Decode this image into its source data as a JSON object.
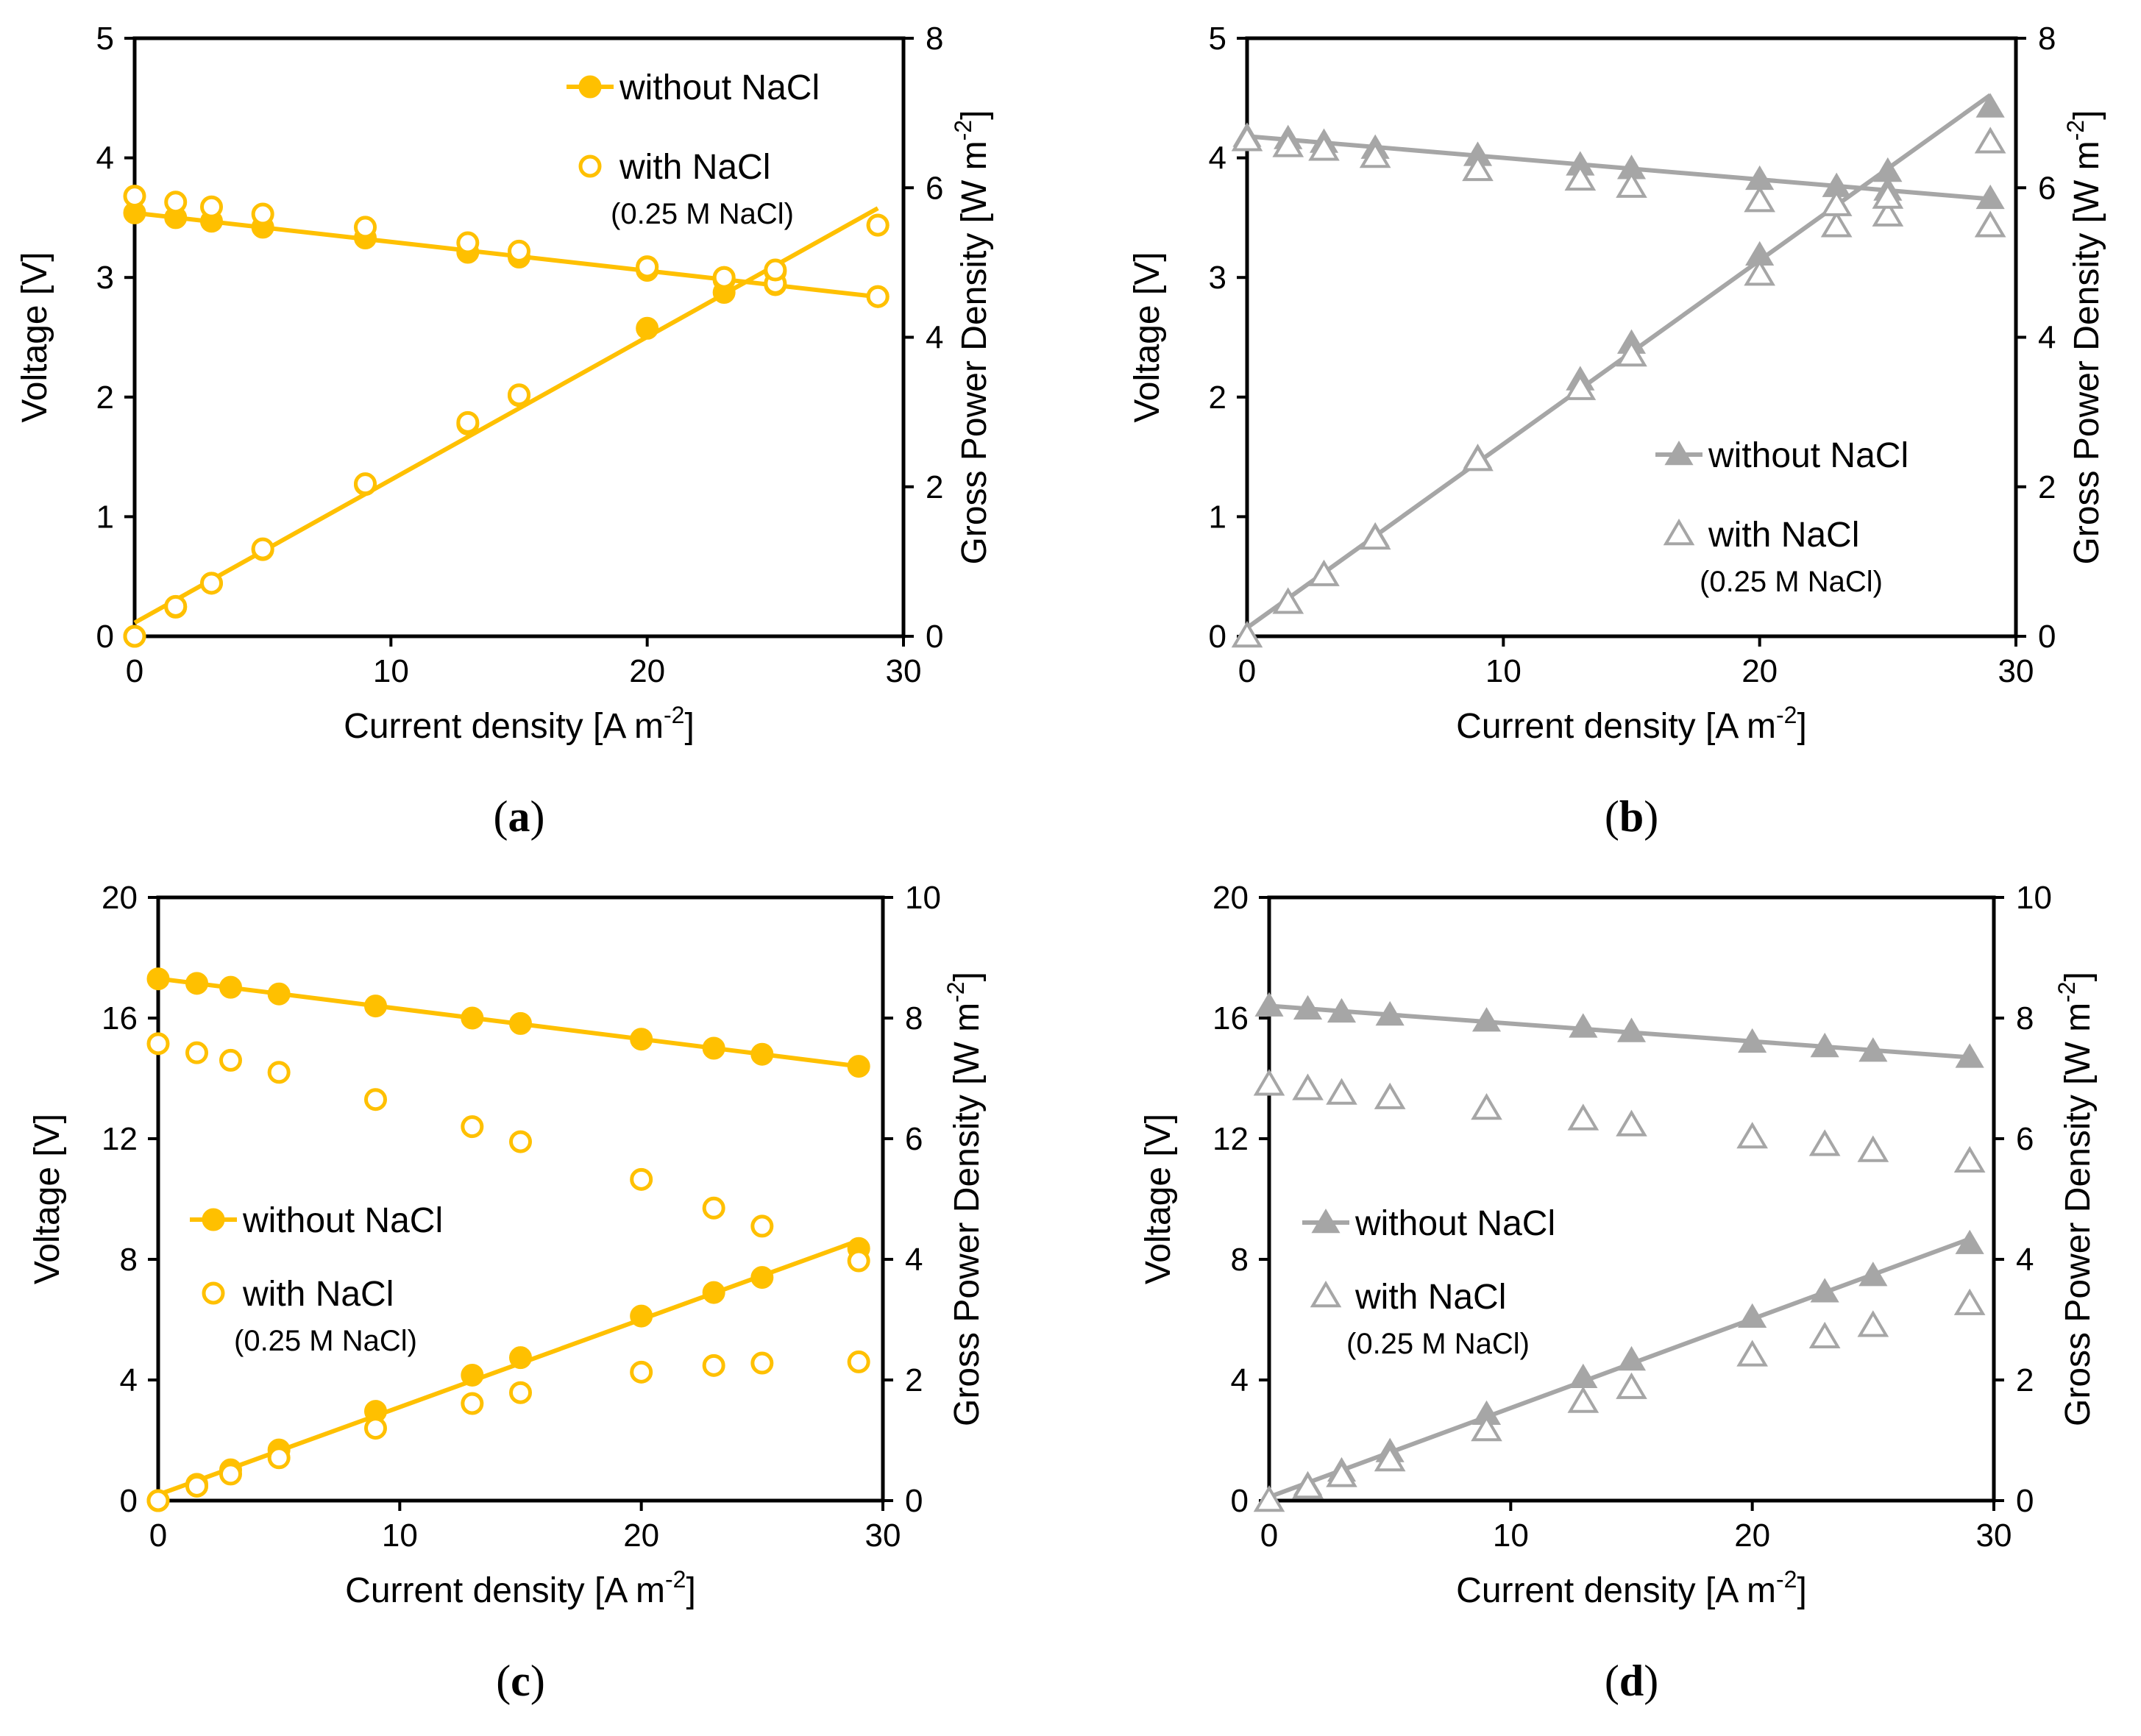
{
  "chart_data": [
    {
      "type": "line",
      "panel_label": "a",
      "xlabel": "Current density [A m",
      "xlabel_sup": "-2",
      "xlabel_end": "]",
      "ylabel": "Voltage [V]",
      "y2label": "Gross Power Density [W m",
      "y2label_sup": "-2",
      "y2label_end": "]",
      "xlim": [
        0,
        30
      ],
      "ylim": [
        0,
        5
      ],
      "y2lim": [
        0,
        8
      ],
      "xticks": [
        "0",
        "10",
        "20",
        "30"
      ],
      "yticks": [
        "0",
        "1",
        "2",
        "3",
        "4",
        "5"
      ],
      "y2ticks": [
        "0",
        "2",
        "4",
        "6",
        "8"
      ],
      "color": "#ffc000",
      "marker": "circle",
      "legend": {
        "position": "top-right",
        "entries": [
          "without NaCl",
          "with NaCl"
        ],
        "note": "(0.25 M NaCl)"
      },
      "x": [
        0,
        1.6,
        3,
        5,
        9,
        13,
        15,
        20,
        23,
        25,
        29
      ],
      "series": [
        {
          "name": "without NaCl",
          "quantity": "voltage",
          "axis": "left",
          "filled": true,
          "line": true,
          "values": [
            3.54,
            3.5,
            3.47,
            3.42,
            3.33,
            3.21,
            3.17,
            3.06,
            2.98,
            2.94,
            2.84
          ]
        },
        {
          "name": "without NaCl",
          "quantity": "power density",
          "axis": "right",
          "filled": true,
          "line": true,
          "values": [
            0,
            0.39,
            0.71,
            1.16,
            2.03,
            2.84,
            3.22,
            4.12,
            4.6,
            4.88,
            5.5
          ]
        },
        {
          "name": "with NaCl",
          "quantity": "voltage",
          "axis": "left",
          "filled": false,
          "line": false,
          "values": [
            3.68,
            3.63,
            3.59,
            3.53,
            3.42,
            3.29,
            3.22,
            3.09,
            3.0,
            2.95,
            2.84
          ]
        },
        {
          "name": "with NaCl",
          "quantity": "power density",
          "axis": "right",
          "filled": false,
          "line": false,
          "values": [
            0,
            0.4,
            0.71,
            1.17,
            2.04,
            2.86,
            3.23,
            4.94,
            4.8,
            4.9,
            5.5
          ]
        }
      ]
    },
    {
      "type": "line",
      "panel_label": "b",
      "xlabel": "Current density [A m",
      "xlabel_sup": "-2",
      "xlabel_end": "]",
      "ylabel": "Voltage [V]",
      "y2label": "Gross Power Density [W m",
      "y2label_sup": "-2",
      "y2label_end": "]",
      "xlim": [
        0,
        30
      ],
      "ylim": [
        0,
        5
      ],
      "y2lim": [
        0,
        8
      ],
      "xticks": [
        "0",
        "10",
        "20",
        "30"
      ],
      "yticks": [
        "0",
        "1",
        "2",
        "3",
        "4",
        "5"
      ],
      "y2ticks": [
        "0",
        "2",
        "4",
        "6",
        "8"
      ],
      "color": "#a6a6a6",
      "marker": "triangle",
      "legend": {
        "position": "bottom-right",
        "entries": [
          "without NaCl",
          "with NaCl"
        ],
        "note": "(0.25 M NaCl)"
      },
      "x": [
        0,
        1.6,
        3,
        5,
        9,
        13,
        15,
        20,
        23,
        25,
        29
      ],
      "series": [
        {
          "name": "without NaCl",
          "quantity": "voltage",
          "axis": "left",
          "filled": true,
          "line": true,
          "values": [
            4.18,
            4.16,
            4.13,
            4.08,
            4.02,
            3.94,
            3.91,
            3.82,
            3.76,
            3.73,
            3.66
          ]
        },
        {
          "name": "without NaCl",
          "quantity": "power density",
          "axis": "right",
          "filled": true,
          "line": true,
          "values": [
            0,
            0.45,
            0.83,
            1.34,
            2.39,
            3.43,
            3.92,
            5.1,
            5.78,
            6.22,
            7.08
          ]
        },
        {
          "name": "with NaCl",
          "quantity": "voltage",
          "axis": "left",
          "filled": false,
          "line": false,
          "values": [
            4.15,
            4.1,
            4.07,
            4.01,
            3.9,
            3.82,
            3.76,
            3.64,
            3.43,
            3.52,
            3.43
          ]
        },
        {
          "name": "with NaCl",
          "quantity": "power density",
          "axis": "right",
          "filled": false,
          "line": false,
          "values": [
            0,
            0.45,
            0.82,
            1.31,
            2.36,
            3.31,
            3.76,
            4.84,
            5.77,
            5.87,
            6.61
          ]
        }
      ]
    },
    {
      "type": "line",
      "panel_label": "c",
      "xlabel": "Current density [A m",
      "xlabel_sup": "-2",
      "xlabel_end": "]",
      "ylabel": "Voltage [V]",
      "y2label": "Gross Power Density [W m",
      "y2label_sup": "-2",
      "y2label_end": "]",
      "xlim": [
        0,
        30
      ],
      "ylim": [
        0,
        20
      ],
      "y2lim": [
        0,
        10
      ],
      "xticks": [
        "0",
        "10",
        "20",
        "30"
      ],
      "yticks": [
        "0",
        "4",
        "8",
        "12",
        "16",
        "20"
      ],
      "y2ticks": [
        "0",
        "2",
        "4",
        "6",
        "8",
        "10"
      ],
      "color": "#ffc000",
      "marker": "circle",
      "legend": {
        "position": "center-left",
        "entries": [
          "without NaCl",
          "with NaCl"
        ],
        "note": "(0.25 M NaCl)"
      },
      "x": [
        0,
        1.6,
        3,
        5,
        9,
        13,
        15,
        20,
        23,
        25,
        29
      ],
      "series": [
        {
          "name": "without NaCl",
          "quantity": "voltage",
          "axis": "left",
          "filled": true,
          "line": true,
          "values": [
            17.3,
            17.15,
            17.02,
            16.8,
            16.4,
            16.0,
            15.82,
            15.3,
            15.0,
            14.8,
            14.4
          ]
        },
        {
          "name": "without NaCl",
          "quantity": "power density",
          "axis": "right",
          "filled": true,
          "line": true,
          "values": [
            0,
            0.27,
            0.51,
            0.84,
            1.48,
            2.08,
            2.37,
            3.06,
            3.45,
            3.7,
            4.18
          ]
        },
        {
          "name": "with NaCl",
          "quantity": "voltage",
          "axis": "left",
          "filled": false,
          "line": false,
          "values": [
            15.15,
            14.85,
            14.6,
            14.2,
            13.3,
            12.4,
            11.9,
            10.65,
            9.7,
            9.1,
            7.95
          ]
        },
        {
          "name": "with NaCl",
          "quantity": "power density",
          "axis": "right",
          "filled": false,
          "line": false,
          "values": [
            0,
            0.24,
            0.44,
            0.71,
            1.2,
            1.61,
            1.79,
            2.13,
            2.24,
            2.28,
            2.3
          ]
        }
      ]
    },
    {
      "type": "line",
      "panel_label": "d",
      "xlabel": "Current density [A m",
      "xlabel_sup": "-2",
      "xlabel_end": "]",
      "ylabel": "Voltage [V]",
      "y2label": "Gross Power Density [W m",
      "y2label_sup": "-2",
      "y2label_end": "]",
      "xlim": [
        0,
        30
      ],
      "ylim": [
        0,
        20
      ],
      "y2lim": [
        0,
        10
      ],
      "xticks": [
        "0",
        "10",
        "20",
        "30"
      ],
      "yticks": [
        "0",
        "4",
        "8",
        "12",
        "16",
        "20"
      ],
      "y2ticks": [
        "0",
        "2",
        "4",
        "6",
        "8",
        "10"
      ],
      "color": "#a6a6a6",
      "marker": "triangle",
      "legend": {
        "position": "center-left",
        "entries": [
          "without NaCl",
          "with NaCl"
        ],
        "note": "(0.25 M NaCl)"
      },
      "x": [
        0,
        1.6,
        3,
        5,
        9,
        13,
        15,
        20,
        23,
        25,
        29
      ],
      "series": [
        {
          "name": "without NaCl",
          "quantity": "voltage",
          "axis": "left",
          "filled": true,
          "line": true,
          "values": [
            16.4,
            16.3,
            16.2,
            16.1,
            15.9,
            15.7,
            15.55,
            15.2,
            15.05,
            14.9,
            14.7
          ]
        },
        {
          "name": "without NaCl",
          "quantity": "power density",
          "axis": "right",
          "filled": true,
          "line": true,
          "values": [
            0,
            0.26,
            0.49,
            0.81,
            1.43,
            2.04,
            2.33,
            3.04,
            3.46,
            3.73,
            4.26
          ]
        },
        {
          "name": "with NaCl",
          "quantity": "voltage",
          "axis": "left",
          "filled": false,
          "line": false,
          "values": [
            13.8,
            13.65,
            13.5,
            13.35,
            13.0,
            12.65,
            12.45,
            12.05,
            11.8,
            11.6,
            11.25
          ]
        },
        {
          "name": "with NaCl",
          "quantity": "power density",
          "axis": "right",
          "filled": false,
          "line": false,
          "values": [
            0,
            0.22,
            0.41,
            0.67,
            1.17,
            1.64,
            1.87,
            2.41,
            2.71,
            2.9,
            3.26
          ]
        }
      ]
    }
  ]
}
